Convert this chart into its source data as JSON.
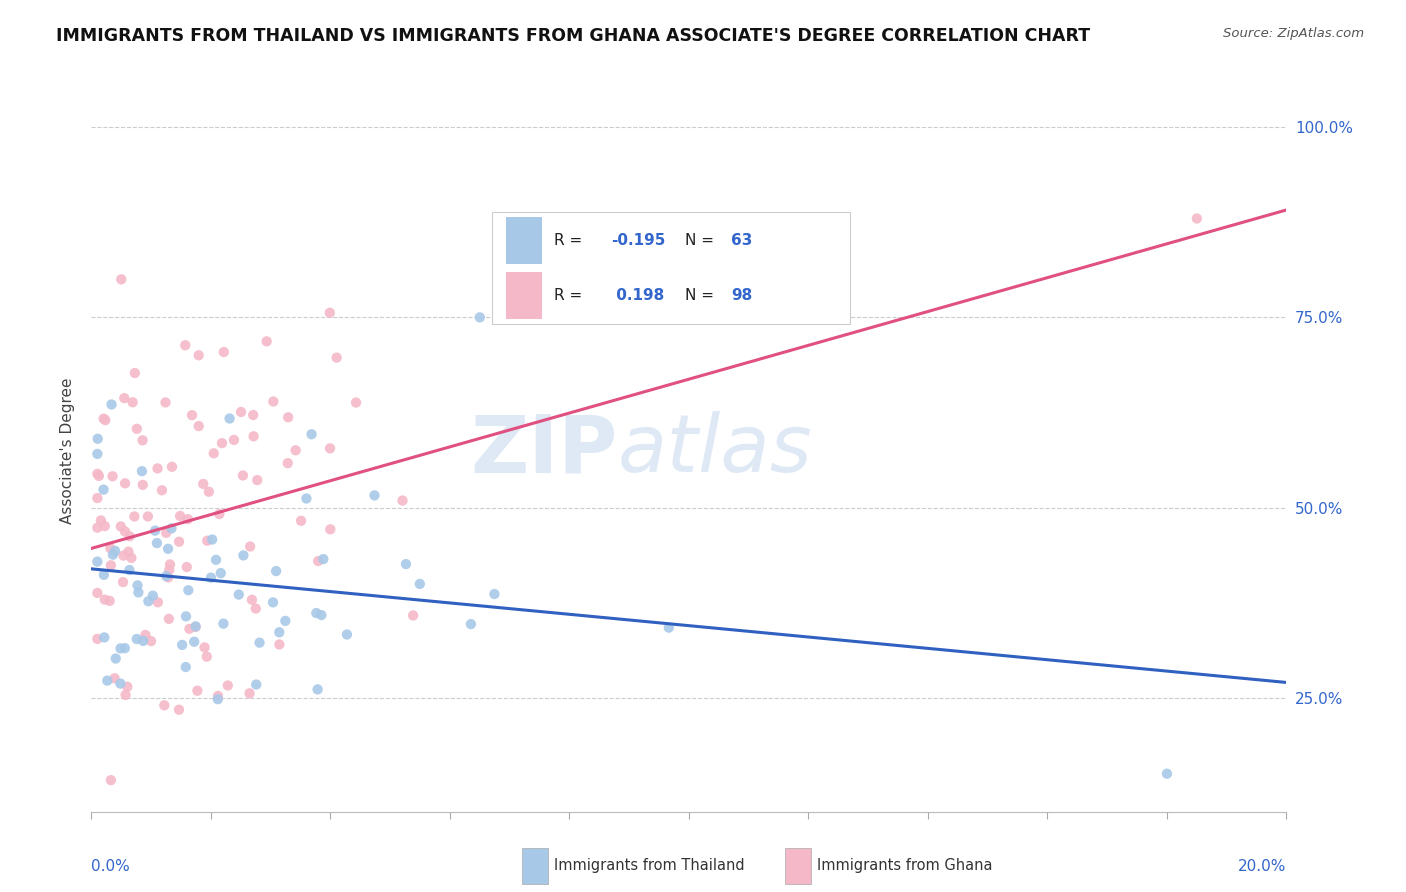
{
  "title": "IMMIGRANTS FROM THAILAND VS IMMIGRANTS FROM GHANA ASSOCIATE'S DEGREE CORRELATION CHART",
  "source": "Source: ZipAtlas.com",
  "ylabel": "Associate's Degree",
  "thailand_color": "#a8c8e8",
  "ghana_color": "#f4b8c8",
  "thailand_line_color": "#3060c0",
  "ghana_line_color": "#e05080",
  "watermark_text": "ZIP",
  "watermark_text2": "atlas",
  "xmin": 0.0,
  "xmax": 0.2,
  "ymin": 0.1,
  "ymax": 1.05,
  "thailand_R": -0.195,
  "ghana_R": 0.198,
  "thailand_N": 63,
  "ghana_N": 98,
  "grid_color": "#cccccc",
  "grid_yticks": [
    0.25,
    0.5,
    0.75,
    1.0
  ],
  "ytick_labels": [
    "25.0%",
    "50.0%",
    "75.0%",
    "100.0%"
  ],
  "xtick_left_label": "0.0%",
  "xtick_right_label": "20.0%",
  "legend_R_color": "#3366cc",
  "legend_N_color": "#3366cc",
  "bottom_legend_thailand": "Immigrants from Thailand",
  "bottom_legend_ghana": "Immigrants from Ghana"
}
